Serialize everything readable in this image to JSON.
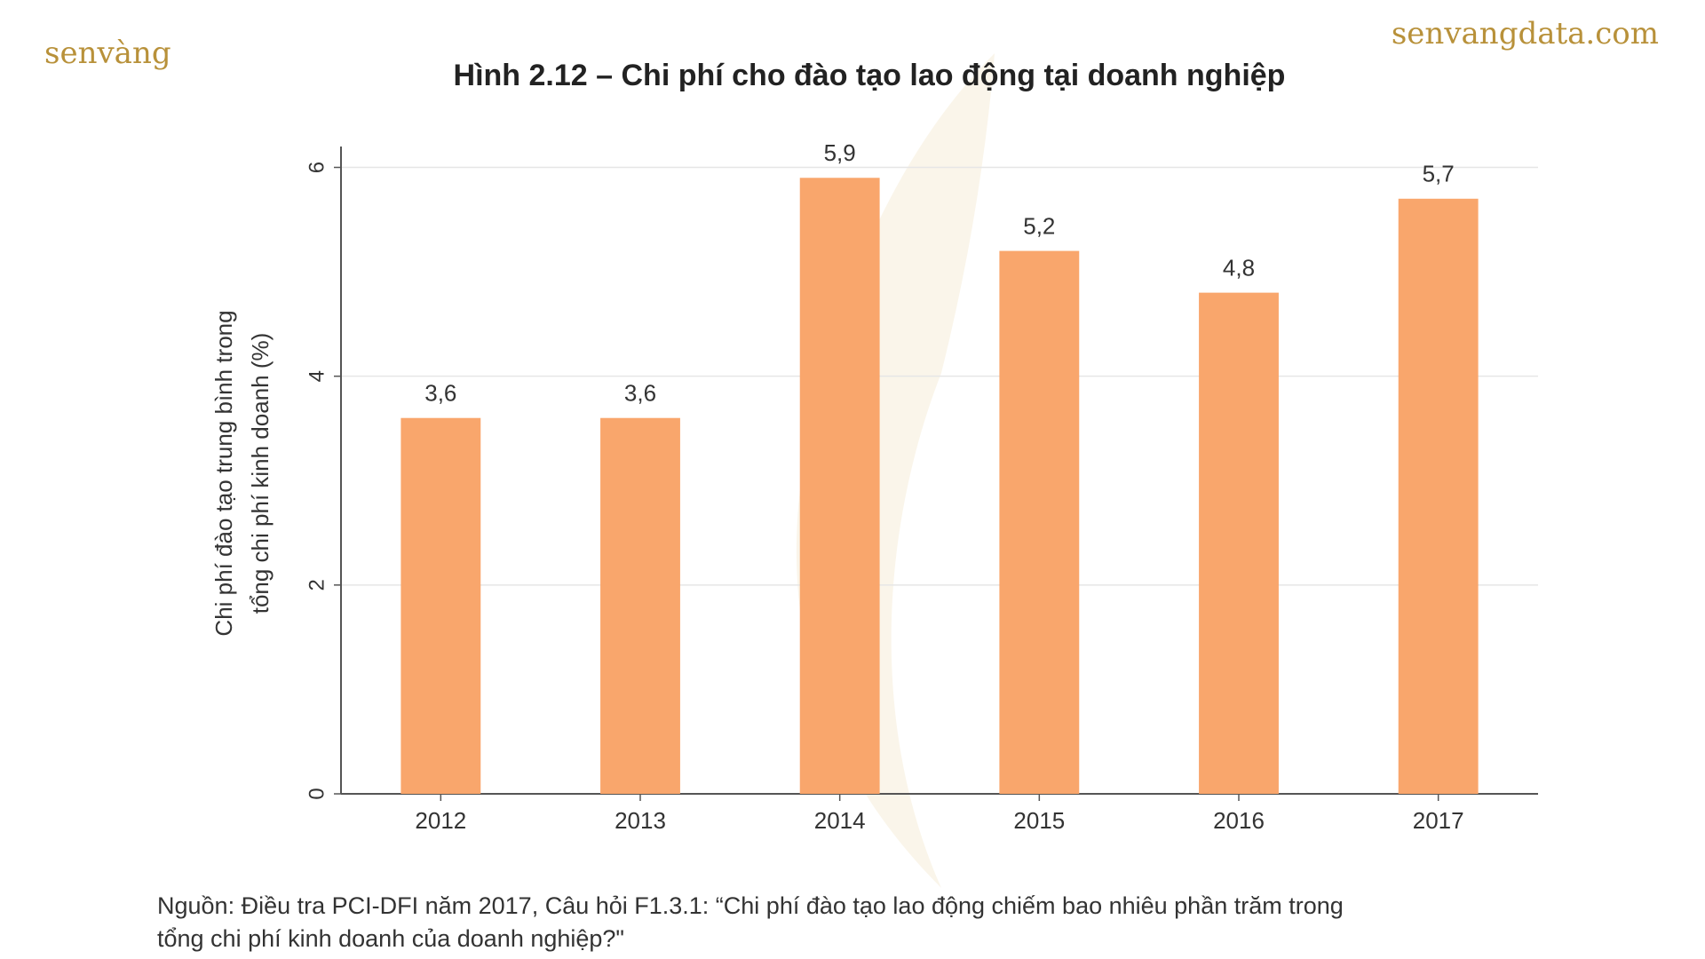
{
  "brand": {
    "logo": "senvàng",
    "site": "senvangdata.com"
  },
  "chart_data": {
    "type": "bar",
    "title": "Hình 2.12 – Chi phí cho đào tạo lao động tại doanh nghiệp",
    "y_label": [
      "Chi phí đào tạo trung bình trong",
      "tổng chi phí kinh doanh (%)"
    ],
    "categories": [
      "2012",
      "2013",
      "2014",
      "2015",
      "2016",
      "2017"
    ],
    "values": [
      3.6,
      3.6,
      5.9,
      5.2,
      4.8,
      5.7
    ],
    "value_labels": [
      "3,6",
      "3,6",
      "5,9",
      "5,2",
      "4,8",
      "5,7"
    ],
    "color": "#f9a66c",
    "ylim": [
      0,
      6.2
    ],
    "yticks": [
      0,
      2,
      4,
      6
    ],
    "grid": true,
    "source": [
      "Nguồn: Điều tra PCI-DFI năm 2017, Câu hỏi F1.3.1: “Chi phí đào tạo lao động chiếm bao nhiêu phần trăm trong",
      "tổng chi phí kinh doanh của doanh nghiệp?\""
    ]
  }
}
